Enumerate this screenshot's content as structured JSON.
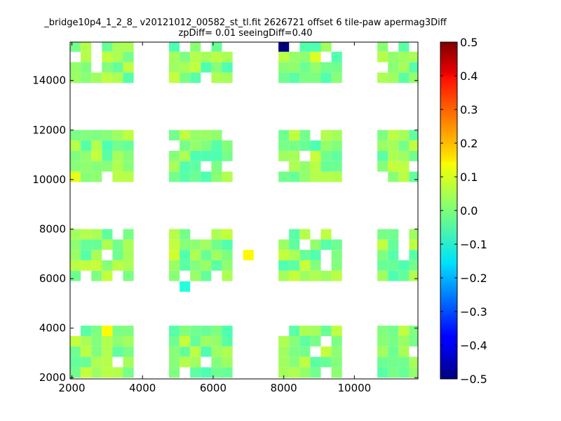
{
  "chart_data": {
    "type": "heatmap",
    "title": "_bridge10p4_1_2_8_ v20121012_00582_st_tl.fit 2626721 offset 6 tile-paw apermag3Diff",
    "subtitle": "zpDiff= 0.01 seeingDiff=0.40",
    "xlim": [
      1950,
      11800
    ],
    "ylim": [
      1950,
      15550
    ],
    "x_ticks": [
      2000,
      4000,
      6000,
      8000,
      10000
    ],
    "y_ticks": [
      2000,
      4000,
      6000,
      8000,
      10000,
      12000,
      14000
    ],
    "x_tick_labels": [
      "2000",
      "4000",
      "6000",
      "8000",
      "10000"
    ],
    "y_tick_labels": [
      "2000",
      "4000",
      "6000",
      "8000",
      "10000",
      "12000",
      "14000"
    ],
    "colorbar": {
      "colormap": "jet",
      "range": [
        -0.5,
        0.5
      ],
      "ticks": [
        0.5,
        0.4,
        0.3,
        0.2,
        0.1,
        0.0,
        -0.1,
        -0.2,
        -0.3,
        -0.4,
        -0.5
      ],
      "tick_labels": [
        "0.5",
        "0.4",
        "0.3",
        "0.2",
        "0.1",
        "0.0",
        "−0.1",
        "−0.2",
        "−0.3",
        "−0.4",
        "−0.5"
      ]
    },
    "cell_size": [
      300,
      420
    ],
    "tile_rows": [
      {
        "rows": [
          2000,
          2420,
          2840,
          3260,
          3680
        ],
        "last_row_partial": true
      },
      {
        "rows": [
          5900,
          6320,
          6740,
          7160,
          7580
        ],
        "last_row_partial": false
      },
      {
        "rows": [
          9900,
          10320,
          10740,
          11160,
          11580
        ],
        "last_row_partial": false
      },
      {
        "rows": [
          13900,
          14320,
          14740,
          15160
        ],
        "last_row_partial": true
      }
    ],
    "tile_cols": [
      {
        "cols": [
          1950,
          2250,
          2550,
          2850,
          3150,
          3450
        ]
      },
      {
        "cols": [
          4750,
          5050,
          5350,
          5650,
          5950,
          6250
        ]
      },
      {
        "cols": [
          7850,
          8150,
          8450,
          8750,
          9050,
          9350
        ]
      },
      {
        "cols": [
          10650,
          10950,
          11250,
          11550
        ]
      }
    ],
    "base_value": 0.02,
    "value_range_typical": [
      -0.05,
      0.07
    ],
    "special_cells": [
      {
        "x": 7850,
        "y": 15160,
        "value": -0.5
      },
      {
        "x": 2850,
        "y": 3680,
        "value": 0.13
      },
      {
        "x": 6850,
        "y": 6740,
        "value": 0.13
      },
      {
        "x": 4750,
        "y": 6740,
        "value": 0.08
      },
      {
        "x": 1950,
        "y": 9900,
        "value": 0.1
      },
      {
        "x": 8750,
        "y": 14740,
        "value": 0.09
      },
      {
        "x": 5050,
        "y": 5470,
        "value": -0.09
      },
      {
        "x": 5650,
        "y": 14320,
        "value": -0.05
      },
      {
        "x": 8750,
        "y": 11160,
        "value": -0.05
      }
    ]
  }
}
